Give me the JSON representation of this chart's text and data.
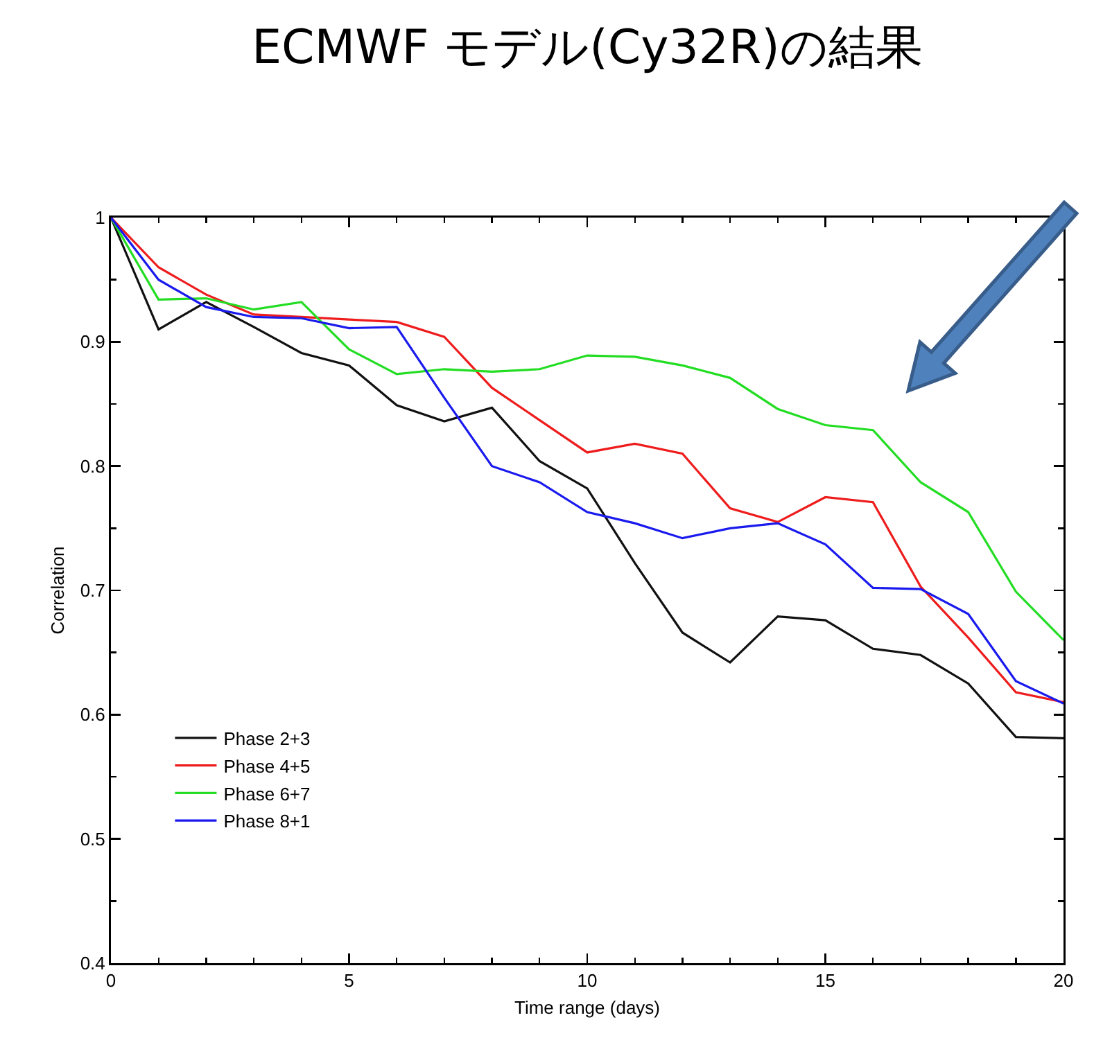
{
  "chart_data": {
    "type": "line",
    "title": "ECMWF モデル(Cy32R)の結果",
    "xlabel": "Time range (days)",
    "ylabel": "Correlation",
    "x": [
      0,
      1,
      2,
      3,
      4,
      5,
      6,
      7,
      8,
      9,
      10,
      11,
      12,
      13,
      14,
      15,
      16,
      17,
      18,
      19,
      20
    ],
    "series": [
      {
        "name": "Phase 2+3",
        "color": "#111111",
        "values": [
          1,
          0.91,
          0.932,
          0.912,
          0.891,
          0.881,
          0.849,
          0.836,
          0.847,
          0.804,
          0.782,
          0.722,
          0.666,
          0.642,
          0.679,
          0.676,
          0.653,
          0.648,
          0.625,
          0.582,
          0.581
        ]
      },
      {
        "name": "Phase 4+5",
        "color": "#ee1c1c",
        "values": [
          1,
          0.96,
          0.938,
          0.922,
          0.92,
          0.918,
          0.916,
          0.904,
          0.863,
          0.837,
          0.811,
          0.818,
          0.81,
          0.766,
          0.755,
          0.775,
          0.771,
          0.703,
          0.662,
          0.618,
          0.61
        ]
      },
      {
        "name": "Phase 6+7",
        "color": "#22dd22",
        "values": [
          1,
          0.934,
          0.935,
          0.926,
          0.932,
          0.894,
          0.874,
          0.878,
          0.876,
          0.878,
          0.889,
          0.888,
          0.881,
          0.871,
          0.846,
          0.833,
          0.829,
          0.787,
          0.763,
          0.699,
          0.66
        ]
      },
      {
        "name": "Phase 8+1",
        "color": "#1a1aee",
        "values": [
          1,
          0.95,
          0.928,
          0.92,
          0.919,
          0.911,
          0.912,
          0.855,
          0.8,
          0.787,
          0.763,
          0.754,
          0.742,
          0.75,
          0.754,
          0.737,
          0.702,
          0.701,
          0.681,
          0.627,
          0.609
        ]
      }
    ],
    "xlim": [
      0,
      20
    ],
    "ylim": [
      0.4,
      1
    ],
    "xticks": [
      0,
      {
        "value": 1,
        "label": null
      },
      {
        "value": 2,
        "label": null
      },
      {
        "value": 3,
        "label": null
      },
      {
        "value": 4,
        "label": null
      },
      5,
      {
        "value": 6,
        "label": null
      },
      {
        "value": 7,
        "label": null
      },
      {
        "value": 8,
        "label": null
      },
      {
        "value": 9,
        "label": null
      },
      10,
      {
        "value": 11,
        "label": null
      },
      {
        "value": 12,
        "label": null
      },
      {
        "value": 13,
        "label": null
      },
      {
        "value": 14,
        "label": null
      },
      15,
      {
        "value": 16,
        "label": null
      },
      {
        "value": 17,
        "label": null
      },
      {
        "value": 18,
        "label": null
      },
      {
        "value": 19,
        "label": null
      },
      20
    ],
    "yticks": [
      0.4,
      {
        "value": 0.45,
        "label": null
      },
      0.5,
      {
        "value": 0.55,
        "label": null
      },
      0.6,
      {
        "value": 0.65,
        "label": null
      },
      0.7,
      {
        "value": 0.75,
        "label": null
      },
      0.8,
      {
        "value": 0.85,
        "label": null
      },
      0.9,
      {
        "value": 0.95,
        "label": null
      },
      1
    ],
    "legend": "bottom left"
  }
}
